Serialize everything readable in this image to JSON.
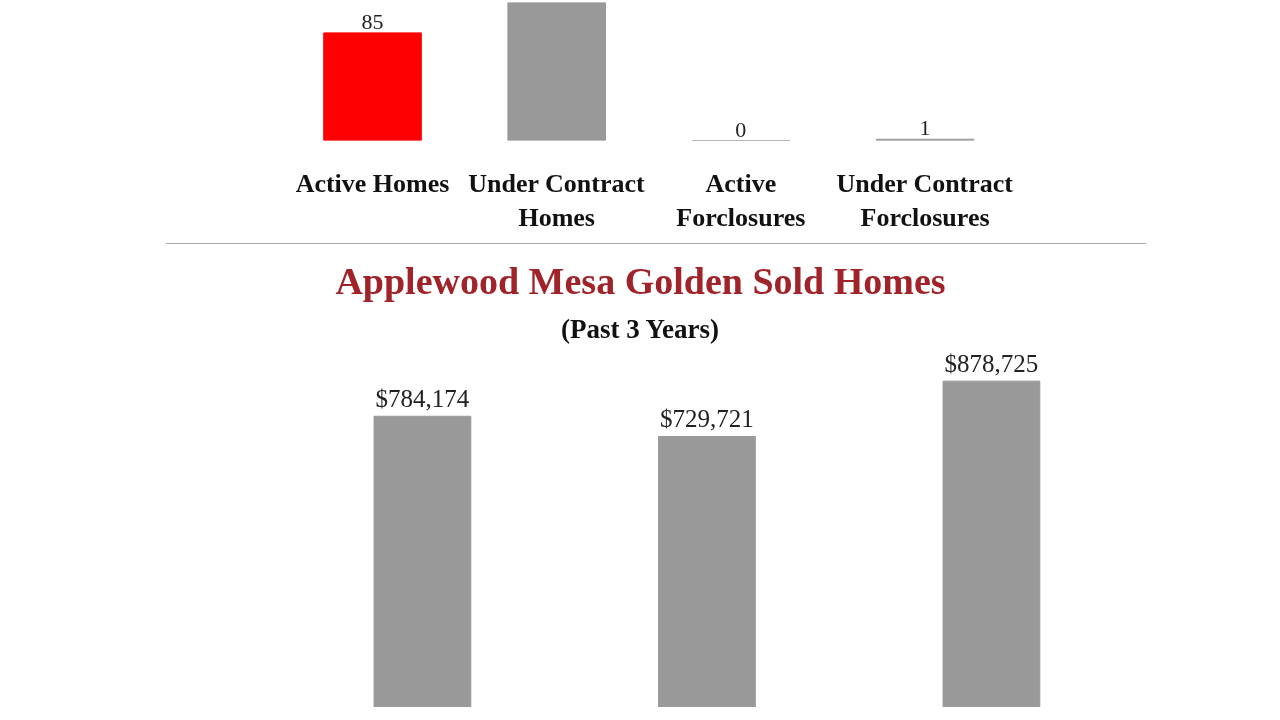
{
  "chart_data": [
    {
      "type": "bar",
      "categories": [
        "Active Homes",
        "Under Contract Homes",
        "Active Forclosures",
        "Under Contract Forclosures"
      ],
      "values": [
        85,
        109,
        0,
        1
      ],
      "colors": [
        "#ff0000",
        "#999999",
        "#999999",
        "#999999"
      ],
      "value_labels": [
        "85",
        null,
        "0",
        "1"
      ],
      "ylim": [
        0,
        109
      ],
      "tick_labels": "x",
      "grid": false
    },
    {
      "type": "bar",
      "title": "Applewood Mesa Golden Sold Homes",
      "subtitle": "(Past 3 Years)",
      "categories": [
        null,
        null,
        null
      ],
      "values": [
        784174,
        729721,
        878725
      ],
      "colors": [
        "#999999",
        "#999999",
        "#999999"
      ],
      "value_labels": [
        "$784,174",
        "$729,721",
        "$878,725"
      ],
      "tick_labels": false,
      "grid": false
    }
  ]
}
